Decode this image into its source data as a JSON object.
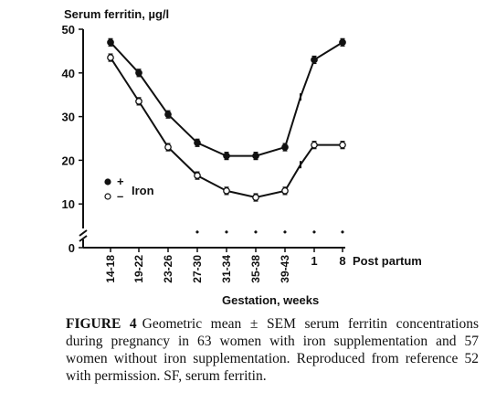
{
  "chart_data": {
    "type": "line",
    "ylabel": "Serum ferritin, µg/l",
    "xlabel": "Gestation, weeks",
    "categories": [
      "14-18",
      "19-22",
      "23-26",
      "27-30",
      "31-34",
      "35-38",
      "39-43",
      "1",
      "8"
    ],
    "transition_points": [
      {
        "after_index": 6,
        "iron_plus": 34.5,
        "iron_minus": 19
      }
    ],
    "post_partum_label": "Post partum",
    "ylim": [
      0,
      50
    ],
    "yticks": [
      0,
      10,
      20,
      30,
      40,
      50
    ],
    "series": [
      {
        "key": "iron_plus",
        "values": [
          47,
          40,
          30.5,
          24,
          21,
          21,
          23,
          43,
          47
        ],
        "marker": "filled"
      },
      {
        "key": "iron_minus",
        "values": [
          43.5,
          33.5,
          23,
          16.5,
          13,
          11.5,
          13,
          23.5,
          23.5
        ],
        "marker": "open"
      }
    ],
    "legend": {
      "plus_symbol": "+",
      "minus_symbol": "–",
      "label": "Iron",
      "placement": "left"
    },
    "significance_marker": "•",
    "significance_indices": [
      3,
      4,
      5,
      6,
      7,
      8
    ],
    "grid": false
  },
  "caption": {
    "figure_label": "FIGURE 4",
    "text": "Geometric mean ± SEM serum ferritin concentrations during pregnancy in 63 women with iron supplementation and 57 women without iron supplementation. Reproduced from reference 52 with permission. SF, serum ferritin."
  }
}
